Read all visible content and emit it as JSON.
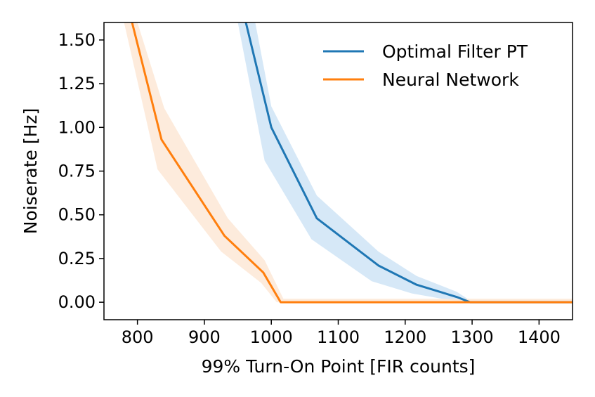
{
  "chart_data": {
    "type": "line",
    "title": "",
    "xlabel": "99% Turn-On Point [FIR counts]",
    "ylabel": "Noiserate [Hz]",
    "xlim": [
      750,
      1450
    ],
    "ylim": [
      -0.1,
      1.6
    ],
    "xticks": [
      "800",
      "900",
      "1000",
      "1100",
      "1200",
      "1300",
      "1400"
    ],
    "yticks": [
      "0.00",
      "0.25",
      "0.50",
      "0.75",
      "1.00",
      "1.25",
      "1.50"
    ],
    "grid": false,
    "legend_position": "top-right",
    "series": [
      {
        "name": "Optimal Filter PT",
        "color": "#1f77b4",
        "band_color": "#cfe4f6",
        "x": [
          962,
          1000,
          1068,
          1160,
          1217,
          1277,
          1297,
          1450
        ],
        "y": [
          1.6,
          1.0,
          0.48,
          0.21,
          0.1,
          0.03,
          0.0,
          0.0
        ],
        "upper": [
          1.6,
          1.12,
          0.61,
          0.29,
          0.15,
          0.06,
          0.01,
          0.01
        ],
        "lower": [
          1.6,
          0.81,
          0.36,
          0.12,
          0.05,
          0.01,
          0.0,
          0.0
        ],
        "band_x_upper": [
          976,
          1000,
          1068,
          1160,
          1217,
          1277,
          1297,
          1450
        ],
        "band_x_lower": [
          950,
          990,
          1060,
          1150,
          1210,
          1270,
          1290,
          1450
        ]
      },
      {
        "name": "Neural Network",
        "color": "#ff7f0e",
        "band_color": "#fde8d6",
        "x": [
          792,
          836,
          930,
          988,
          1014,
          1450
        ],
        "y": [
          1.6,
          0.93,
          0.38,
          0.17,
          0.0,
          0.0
        ],
        "upper": [
          1.6,
          1.11,
          0.48,
          0.24,
          0.02,
          0.02
        ],
        "lower": [
          1.6,
          0.76,
          0.29,
          0.11,
          0.0,
          0.0
        ],
        "band_x_upper": [
          800,
          840,
          935,
          990,
          1018,
          1450
        ],
        "band_x_lower": [
          780,
          830,
          925,
          985,
          1008,
          1450
        ]
      }
    ]
  }
}
